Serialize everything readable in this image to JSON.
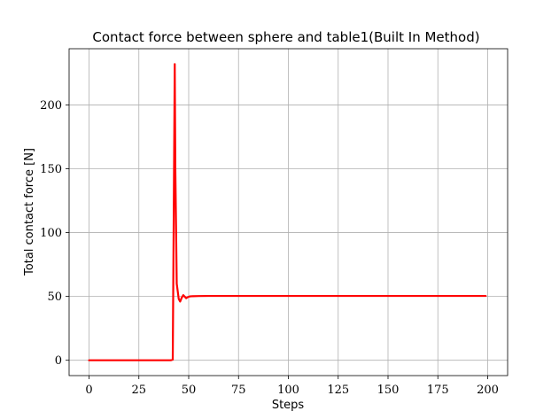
{
  "chart_data": {
    "type": "line",
    "title": "Contact force between sphere and table1(Built In Method)",
    "xlabel": "Steps",
    "ylabel": "Total contact force [N]",
    "xlim": [
      -10,
      210
    ],
    "ylim": [
      -12,
      244
    ],
    "xticks": [
      0,
      25,
      50,
      75,
      100,
      125,
      150,
      175,
      200
    ],
    "yticks": [
      0,
      50,
      100,
      150,
      200
    ],
    "grid": true,
    "series": [
      {
        "color": "#ff0000",
        "x": [
          0,
          10,
          20,
          30,
          40,
          41,
          42,
          42.7,
          43,
          43.3,
          44,
          45,
          45.7,
          46.5,
          47.3,
          48,
          48.7,
          49.5,
          50.5,
          52,
          55,
          60,
          70,
          80,
          100,
          120,
          150,
          180,
          199
        ],
        "y": [
          0,
          0,
          0,
          0,
          0,
          0,
          0.5,
          160,
          232,
          150,
          60,
          48,
          46,
          49,
          51,
          49.8,
          48.6,
          49.4,
          50,
          50.2,
          50.3,
          50.4,
          50.4,
          50.4,
          50.4,
          50.4,
          50.4,
          50.4,
          50.4
        ]
      }
    ]
  }
}
